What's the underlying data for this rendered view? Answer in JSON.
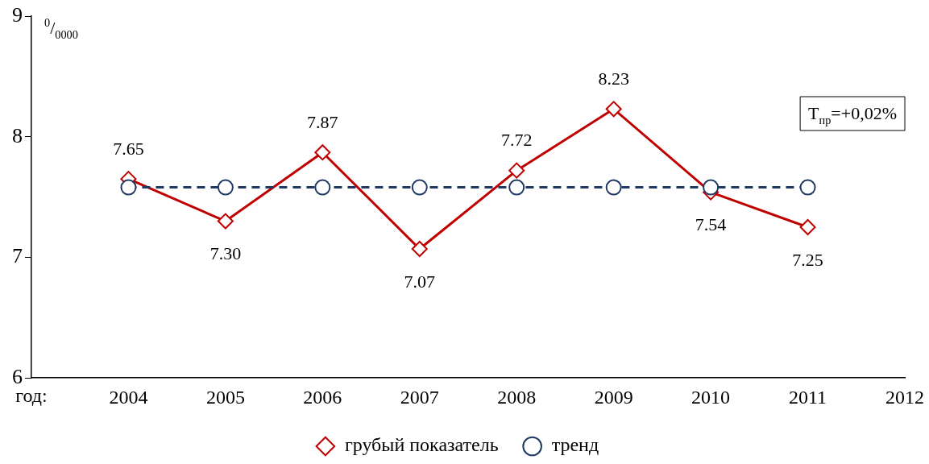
{
  "chart_data": {
    "type": "line",
    "ylabel": "$^{0}$/$_{0000}$",
    "xlabel": "год:",
    "categories": [
      null,
      "2004",
      "2005",
      "2006",
      "2007",
      "2008",
      "2009",
      "2010",
      "2011",
      "2012"
    ],
    "series": [
      {
        "name": "грубый показатель",
        "color": "#c00000",
        "values": [
          null,
          7.65,
          7.3,
          7.87,
          7.07,
          7.72,
          8.23,
          7.54,
          7.25,
          null
        ],
        "value_labels": [
          null,
          "7.65",
          "7.30",
          "7.87",
          "7.07",
          "7.72",
          "8.23",
          "7.54",
          "7.25",
          null
        ],
        "marker": "diamond",
        "line_style": "solid"
      },
      {
        "name": "тренд",
        "color": "#1f3864",
        "values": [
          null,
          7.58,
          7.58,
          7.58,
          7.58,
          7.58,
          7.58,
          7.58,
          7.58,
          null
        ],
        "marker": "circle",
        "line_style": "dashed"
      }
    ],
    "ylim": [
      6,
      9
    ],
    "yticks": [
      6,
      7,
      8,
      9
    ],
    "grid": false,
    "legend": "bottom",
    "annotations": [
      "Т$_{пр}$=+0,02%"
    ]
  }
}
